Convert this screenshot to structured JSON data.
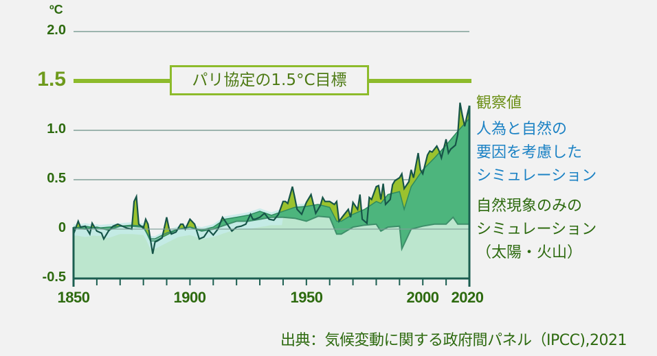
{
  "chart_data": {
    "type": "area",
    "title": "",
    "unit": "ºC",
    "xlabel": "",
    "ylabel": "ºC",
    "xlim": [
      1850,
      2020
    ],
    "ylim": [
      -0.5,
      2.0
    ],
    "x_ticks": [
      "1850",
      "1900",
      "1950",
      "2000",
      "2020"
    ],
    "x_tick_values": [
      1850,
      1900,
      1950,
      2000,
      2020
    ],
    "y_ticks": [
      "2.0",
      "1.5",
      "1.0",
      "0.5",
      "0",
      "-0.5"
    ],
    "y_tick_values": [
      2.0,
      1.5,
      1.0,
      0.5,
      0,
      -0.5
    ],
    "grid": true,
    "reference_line": {
      "value": 1.5,
      "label": "パリ協定の1.5°C目標",
      "color": "#8dbb2b"
    },
    "legend_position": "right",
    "series": [
      {
        "name": "観察値",
        "color": "#9ac22e",
        "x": [
          1850,
          1852,
          1853,
          1855,
          1857,
          1858,
          1860,
          1862,
          1863,
          1865,
          1867,
          1869,
          1871,
          1873,
          1875,
          1876,
          1877,
          1878,
          1880,
          1881,
          1882,
          1884,
          1885,
          1886,
          1888,
          1890,
          1891,
          1892,
          1894,
          1896,
          1897,
          1898,
          1900,
          1902,
          1904,
          1906,
          1908,
          1910,
          1912,
          1914,
          1916,
          1918,
          1920,
          1922,
          1924,
          1926,
          1927,
          1928,
          1930,
          1932,
          1934,
          1936,
          1938,
          1940,
          1941,
          1942,
          1944,
          1945,
          1946,
          1948,
          1950,
          1952,
          1954,
          1956,
          1957,
          1958,
          1960,
          1962,
          1963,
          1964,
          1966,
          1968,
          1969,
          1970,
          1972,
          1973,
          1974,
          1976,
          1977,
          1978,
          1980,
          1981,
          1982,
          1983,
          1984,
          1986,
          1987,
          1988,
          1990,
          1991,
          1992,
          1994,
          1995,
          1996,
          1998,
          1999,
          2000,
          2002,
          2003,
          2004,
          2006,
          2007,
          2008,
          2010,
          2011,
          2012,
          2014,
          2015,
          2016,
          2017,
          2018,
          2019,
          2020
        ],
        "values": [
          -0.05,
          0.08,
          0.02,
          0.03,
          -0.05,
          0.06,
          -0.02,
          -0.04,
          -0.1,
          -0.02,
          0.03,
          0.05,
          0.03,
          0.01,
          0.0,
          0.28,
          0.33,
          0.05,
          0.01,
          0.1,
          0.05,
          -0.25,
          -0.13,
          -0.12,
          -0.09,
          0.12,
          0.01,
          -0.05,
          -0.03,
          0.05,
          0.05,
          0.0,
          0.1,
          0.05,
          -0.1,
          -0.08,
          -0.01,
          -0.06,
          0.0,
          0.12,
          0.05,
          -0.02,
          0.02,
          0.03,
          0.05,
          0.15,
          0.1,
          0.1,
          0.12,
          0.16,
          0.1,
          0.09,
          0.15,
          0.28,
          0.28,
          0.26,
          0.43,
          0.32,
          0.2,
          0.15,
          0.27,
          0.35,
          0.16,
          0.24,
          0.32,
          0.28,
          0.28,
          0.25,
          0.28,
          0.08,
          0.14,
          0.2,
          0.12,
          0.27,
          0.2,
          0.35,
          0.1,
          0.06,
          0.32,
          0.3,
          0.43,
          0.44,
          0.3,
          0.46,
          0.25,
          0.3,
          0.45,
          0.49,
          0.52,
          0.56,
          0.41,
          0.48,
          0.6,
          0.52,
          0.77,
          0.6,
          0.56,
          0.75,
          0.79,
          0.78,
          0.84,
          0.79,
          0.72,
          0.91,
          0.77,
          0.81,
          0.85,
          0.96,
          1.28,
          1.15,
          1.04,
          1.15,
          1.25
        ]
      },
      {
        "name": "人為と自然の要因を考慮したシミュレーション",
        "color": "#4db57d",
        "x": [
          1850,
          1855,
          1860,
          1865,
          1870,
          1875,
          1880,
          1883,
          1885,
          1890,
          1895,
          1900,
          1905,
          1910,
          1915,
          1920,
          1925,
          1930,
          1935,
          1940,
          1945,
          1950,
          1955,
          1960,
          1963,
          1965,
          1970,
          1975,
          1980,
          1982,
          1985,
          1990,
          1992,
          1995,
          2000,
          2005,
          2010,
          2015,
          2020
        ],
        "values": [
          0.01,
          0.03,
          0.01,
          0.02,
          0.03,
          0.04,
          0.03,
          -0.12,
          -0.12,
          -0.06,
          0.0,
          0.02,
          -0.01,
          0.02,
          0.1,
          0.12,
          0.14,
          0.18,
          0.14,
          0.18,
          0.22,
          0.23,
          0.25,
          0.22,
          0.08,
          0.08,
          0.15,
          0.2,
          0.28,
          0.26,
          0.35,
          0.38,
          0.2,
          0.43,
          0.6,
          0.72,
          0.85,
          0.99,
          1.12
        ]
      },
      {
        "name": "自然現象のみのシミュレーション（太陽・火山）",
        "color": "#bce6ce",
        "x": [
          1850,
          1855,
          1860,
          1865,
          1870,
          1875,
          1880,
          1883,
          1885,
          1890,
          1895,
          1900,
          1905,
          1910,
          1915,
          1920,
          1925,
          1930,
          1935,
          1940,
          1945,
          1950,
          1955,
          1960,
          1963,
          1965,
          1970,
          1975,
          1980,
          1982,
          1985,
          1990,
          1991,
          1992,
          1995,
          2000,
          2005,
          2010,
          2013,
          2015,
          2020
        ],
        "values": [
          0.02,
          0.0,
          0.02,
          -0.01,
          0.03,
          0.03,
          0.02,
          -0.1,
          -0.1,
          -0.04,
          0.0,
          0.02,
          -0.02,
          0.0,
          0.04,
          0.08,
          0.08,
          0.1,
          0.12,
          0.12,
          0.11,
          0.08,
          0.13,
          0.12,
          -0.05,
          -0.05,
          0.02,
          0.04,
          0.05,
          -0.02,
          0.02,
          0.03,
          -0.2,
          -0.15,
          0.0,
          0.03,
          0.05,
          0.05,
          0.12,
          0.05,
          0.05
        ]
      }
    ]
  },
  "axis": {
    "unit": "ºC",
    "y_labels": [
      {
        "text": "2.0",
        "value": 2.0
      },
      {
        "text": "1.0",
        "value": 1.0
      },
      {
        "text": "0.5",
        "value": 0.5
      },
      {
        "text": "0",
        "value": 0
      },
      {
        "text": "-0.5",
        "value": -0.5
      }
    ],
    "y_target_label": "1.5",
    "x_labels": [
      "1850",
      "1900",
      "1950",
      "2000",
      "2020"
    ]
  },
  "target_label": "パリ協定の1.5°C目標",
  "legend": {
    "observed": "観察値",
    "human_natural": "人為と自然の\n要因を考慮した\nシミュレーション",
    "natural_only": "自然現象のみの\nシミュレーション\n（太陽・火山）"
  },
  "source": "出典：気候変動に関する政府間パネル（IPCC),2021",
  "colors": {
    "background": "#f2f2f2",
    "axis_dark": "#1b5e50",
    "grid": "#7f9f98",
    "target_line": "#8dbb2b",
    "observed_fill": "#9ac22e",
    "human_fill": "#4db57d",
    "natural_fill": "#bce6ce",
    "natural_band": "#c6ebe9",
    "label_green": "#2d6a0f",
    "label_blue": "#1c82c4",
    "label_olive": "#6a8e14"
  }
}
